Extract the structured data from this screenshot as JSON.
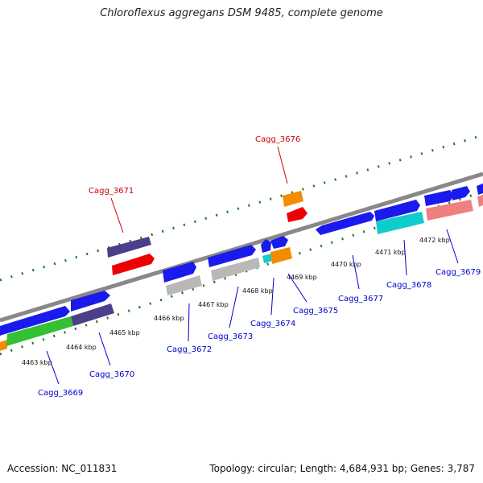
{
  "title": "Chloroflexus aggregans DSM 9485, complete genome",
  "footer": {
    "accession": "Accession: NC_011831",
    "summary": "Topology: circular; Length: 4,684,931 bp; Genes: 3,787"
  },
  "scale_labels": [
    "4463 kbp",
    "4464 kbp",
    "4465 kbp",
    "4466 kbp",
    "4467 kbp",
    "4468 kbp",
    "4469 kbp",
    "4470 kbp",
    "4471 kbp",
    "4472 kbp"
  ],
  "gene_labels_above": [
    "Cagg_3671",
    "Cagg_3676"
  ],
  "gene_labels_below": [
    "Cagg_3669",
    "Cagg_3670",
    "Cagg_3672",
    "Cagg_3673",
    "Cagg_3674",
    "Cagg_3675",
    "Cagg_3677",
    "Cagg_3678",
    "Cagg_3679"
  ],
  "colors": {
    "backbone": "#888888",
    "tick": "#1f7a1f",
    "label_above": "#cc0000",
    "label_below": "#0000cc",
    "gene_blue": "#1a1aee",
    "gene_red": "#ee0000",
    "gene_orange": "#f28c00",
    "gene_purple": "#4b3f8a",
    "gene_gray": "#b8b8b8",
    "gene_cyan": "#11cccc",
    "gene_pink": "#ee8080",
    "gene_green": "#33c033"
  }
}
